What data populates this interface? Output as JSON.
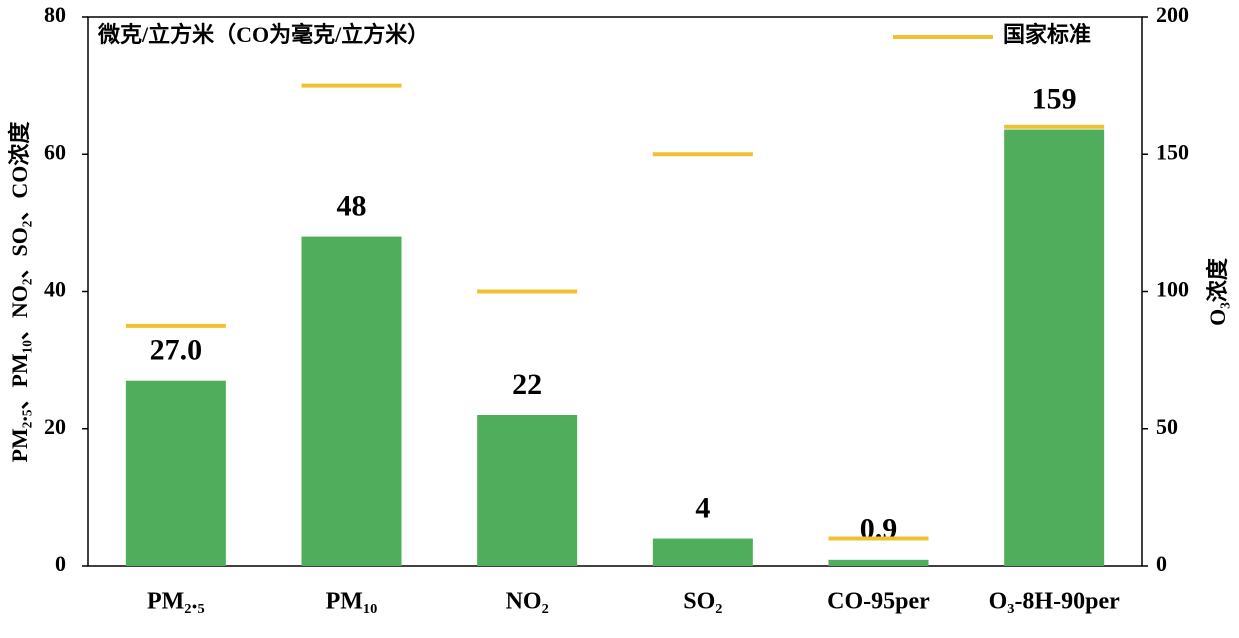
{
  "chart_data": {
    "type": "bar",
    "annotation": "微克/立方米（CO为毫克/立方米）",
    "y_label": "PM₂.₅、PM₁₀、NO₂、SO₂、CO浓度",
    "y2_label": "O₃浓度",
    "categories": [
      "PM₂.₅",
      "PM₁₀",
      "NO₂",
      "SO₂",
      "CO-95per",
      "O₃-8H-90per"
    ],
    "series": [
      {
        "color": "#4fad5b",
        "values": [
          27,
          48,
          22,
          4,
          0.9,
          null
        ],
        "value_labels": [
          "27.0",
          "48",
          "22",
          "4",
          "0.9",
          null
        ]
      },
      {
        "color": "#4fad5b",
        "axis": "y2",
        "values": [
          null,
          null,
          null,
          null,
          null,
          159
        ],
        "value_labels": [
          null,
          null,
          null,
          null,
          null,
          "159"
        ]
      },
      {
        "name": "国家标准",
        "type": "standard",
        "color": "#f0c030",
        "values": [
          35,
          70,
          40,
          60,
          4,
          null
        ]
      },
      {
        "type": "standard",
        "color": "#f0c030",
        "axis": "y2",
        "values": [
          null,
          null,
          null,
          null,
          null,
          160
        ]
      }
    ],
    "ylim": [
      0,
      80
    ],
    "yticks": [
      0,
      20,
      40,
      60,
      80
    ],
    "y2lim": [
      0,
      200
    ],
    "y2ticks": [
      0,
      50,
      100,
      150,
      200
    ],
    "legend": "upper right",
    "grid": false
  }
}
